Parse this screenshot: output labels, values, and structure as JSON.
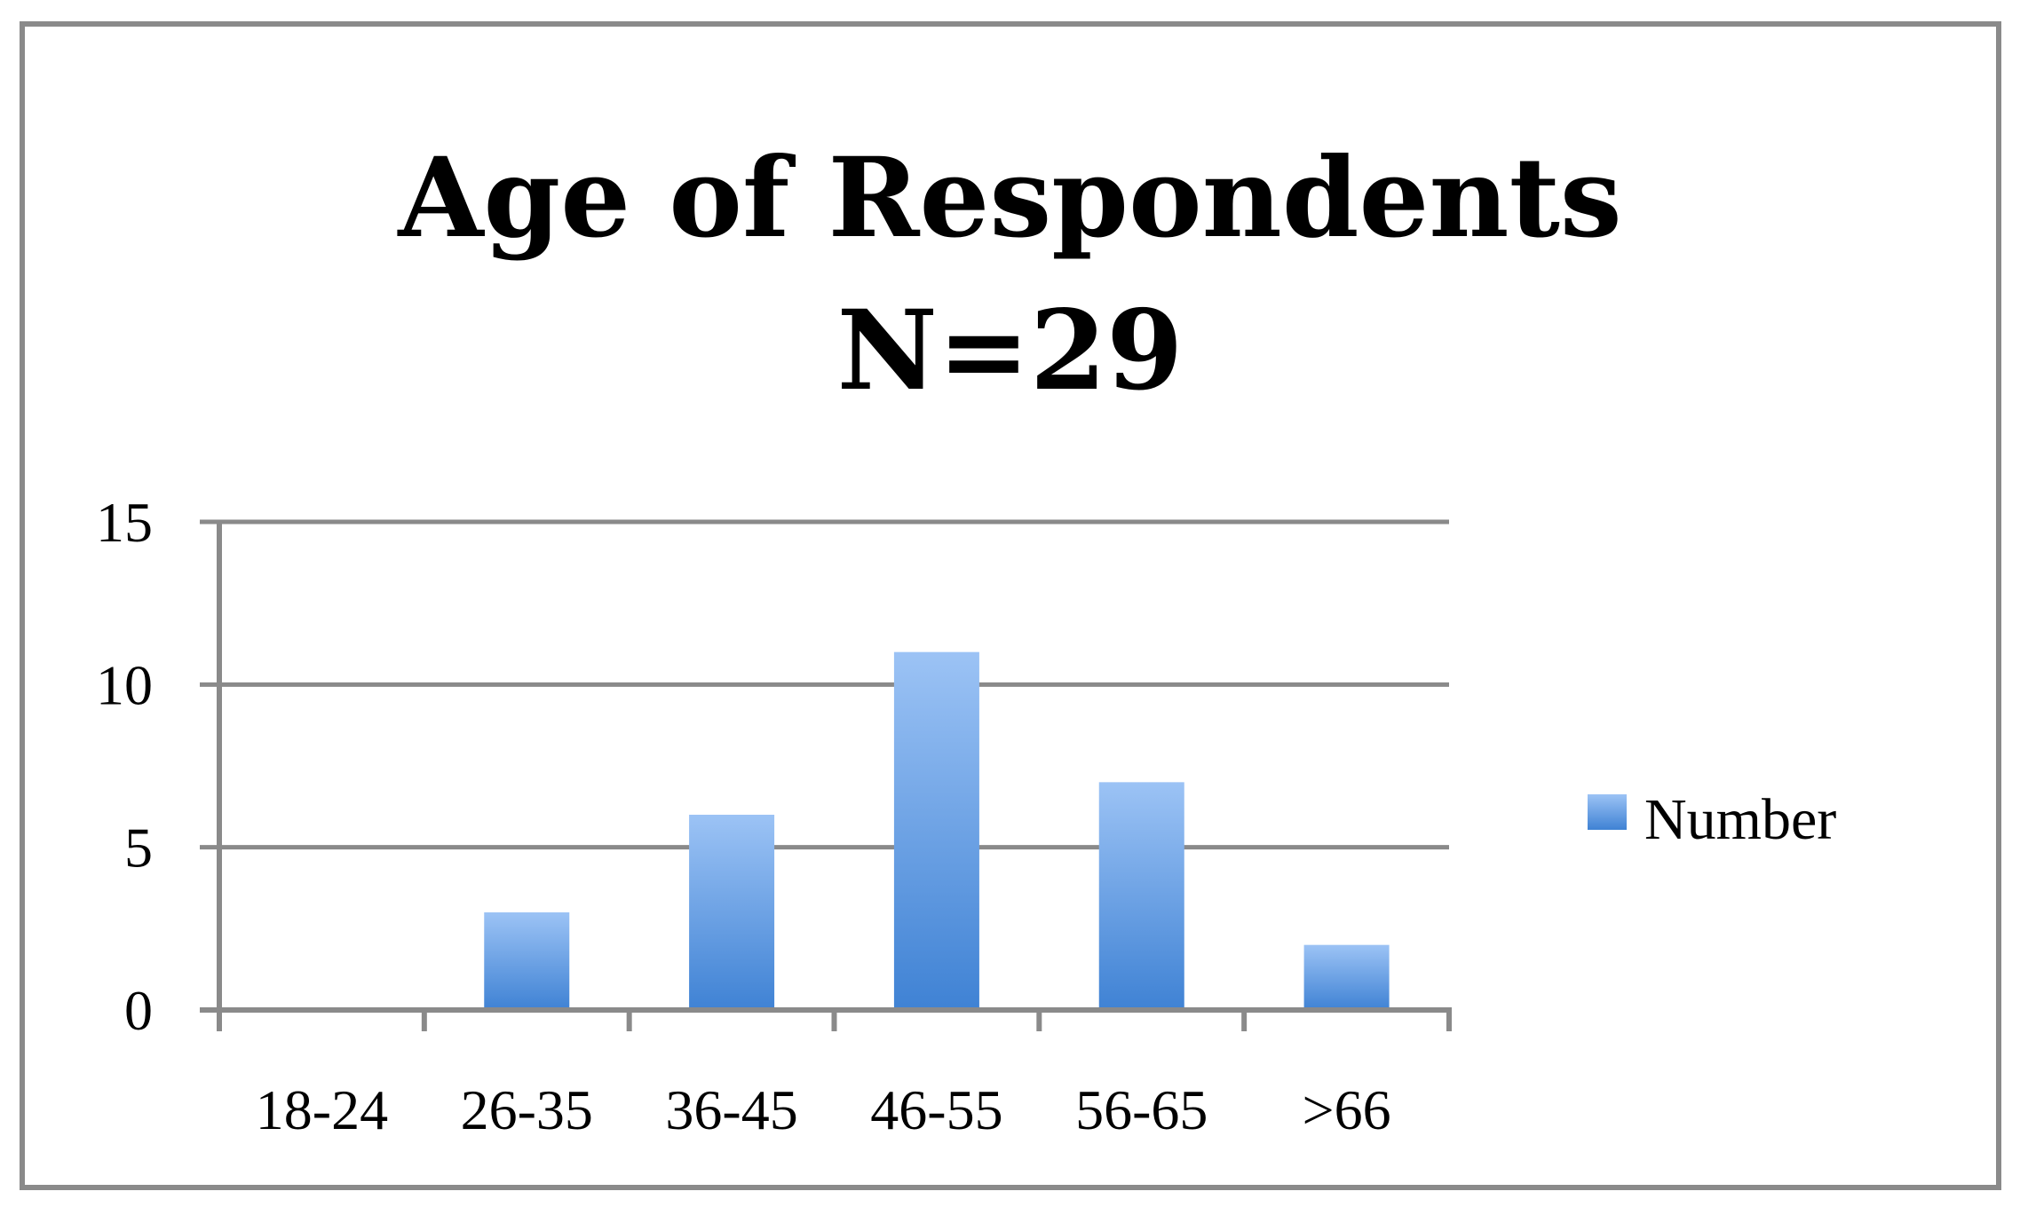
{
  "chart_data": {
    "type": "bar",
    "title": "Age of Respondents",
    "subtitle": "N=29",
    "categories": [
      "18-24",
      "26-35",
      "36-45",
      "46-55",
      "56-65",
      ">66"
    ],
    "series": [
      {
        "name": "Number",
        "values": [
          0,
          3,
          6,
          11,
          7,
          2
        ]
      }
    ],
    "xlabel": "",
    "ylabel": "",
    "ylim": [
      0,
      15
    ],
    "yticks": [
      0,
      5,
      10,
      15
    ],
    "grid": true,
    "legend": "right",
    "colors": {
      "bar_top": "#9cc3f5",
      "bar_bottom": "#3f82d4",
      "grid": "#8a8a8a",
      "axis": "#8a8a8a",
      "text": "#000000"
    }
  }
}
